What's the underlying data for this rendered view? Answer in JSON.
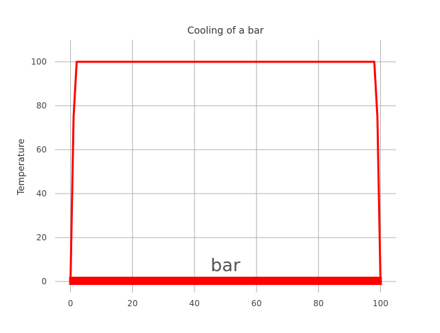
{
  "chart_data": {
    "type": "line",
    "title": "Cooling of a bar",
    "xlabel": "",
    "ylabel": "Temperature",
    "xlim": [
      -5,
      105
    ],
    "ylim": [
      -5,
      110
    ],
    "xticks": [
      0,
      20,
      40,
      60,
      80,
      100
    ],
    "yticks": [
      0,
      20,
      40,
      60,
      80,
      100
    ],
    "grid": true,
    "annotation": "bar",
    "series": [
      {
        "name": "temperature",
        "color": "#ff0000",
        "x": [
          0,
          1,
          2,
          98,
          99,
          100
        ],
        "y": [
          0,
          75,
          100,
          100,
          75,
          0
        ]
      }
    ],
    "bar_strip": {
      "x_start": 0,
      "x_end": 100,
      "y": 0,
      "color": "#ff0000"
    }
  }
}
